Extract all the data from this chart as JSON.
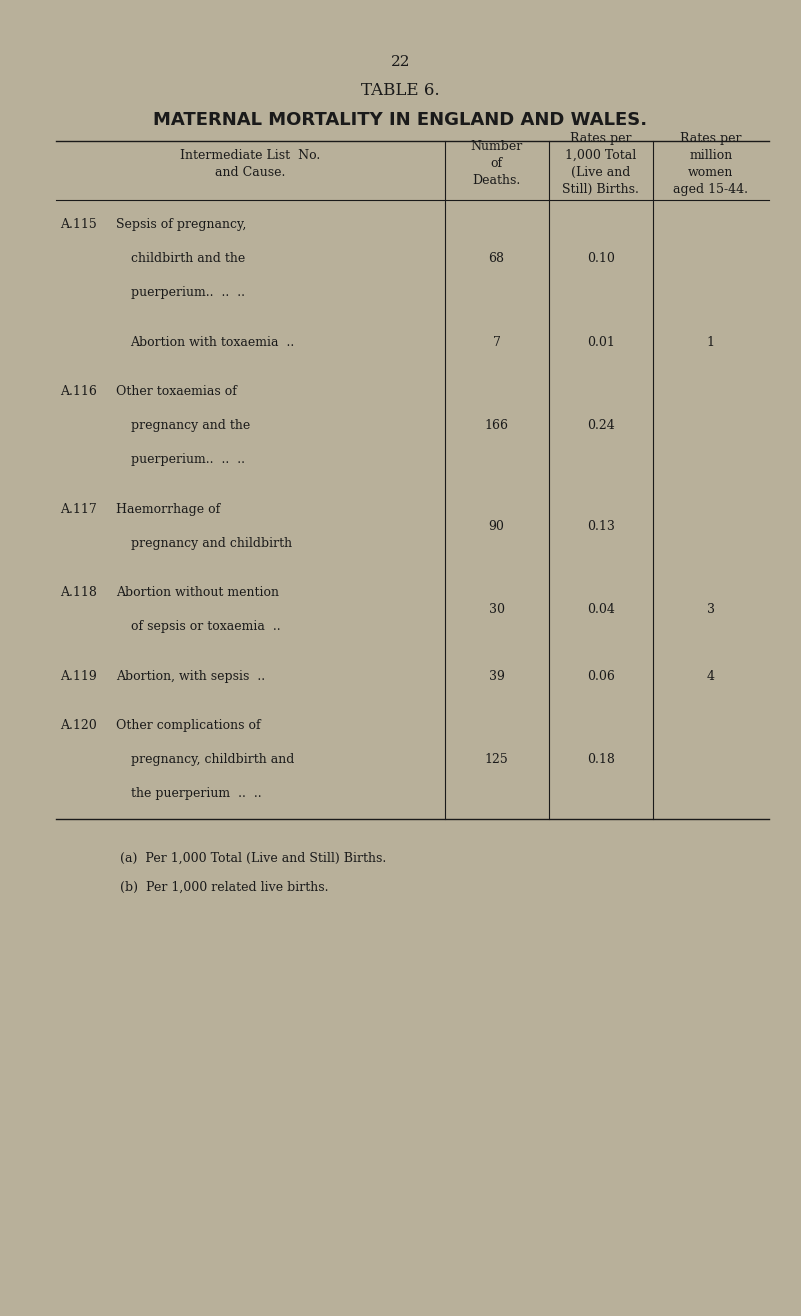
{
  "page_number": "22",
  "table_title": "TABLE 6.",
  "table_subtitle": "MATERNAL MORTALITY IN ENGLAND AND WALES.",
  "bg_color": "#b8b09a",
  "text_color": "#1a1a1a",
  "col_headers": [
    "Intermediate List  No.\nand Cause.",
    "Number\nof\nDeaths.",
    "Rates per\n1,000 Total\n(Live and\nStill) Births.",
    "Rates per\nmillion\nwomen\naged 15-44."
  ],
  "rows": [
    {
      "id": "A.115",
      "cause_lines": [
        "Sepsis of pregnancy,",
        "childbirth and the",
        "puerperium..  ..  .."
      ],
      "number": "68",
      "rate_births": "0.10",
      "rate_women": ""
    },
    {
      "id": "",
      "cause_lines": [
        "Abortion with toxaemia  .."
      ],
      "number": "7",
      "rate_births": "0.01",
      "rate_women": "1"
    },
    {
      "id": "A.116",
      "cause_lines": [
        "Other toxaemias of",
        "pregnancy and the",
        "puerperium..  ..  .."
      ],
      "number": "166",
      "rate_births": "0.24",
      "rate_women": ""
    },
    {
      "id": "A.117",
      "cause_lines": [
        "Haemorrhage of",
        "pregnancy and childbirth"
      ],
      "number": "90",
      "rate_births": "0.13",
      "rate_women": ""
    },
    {
      "id": "A.118",
      "cause_lines": [
        "Abortion without mention",
        "of sepsis or toxaemia  .."
      ],
      "number": "30",
      "rate_births": "0.04",
      "rate_women": "3"
    },
    {
      "id": "A.119",
      "cause_lines": [
        "Abortion, with sepsis  .."
      ],
      "number": "39",
      "rate_births": "0.06",
      "rate_women": "4"
    },
    {
      "id": "A.120",
      "cause_lines": [
        "Other complications of",
        "pregnancy, childbirth and",
        "the puerperium  ..  .."
      ],
      "number": "125",
      "rate_births": "0.18",
      "rate_women": ""
    }
  ],
  "footnotes": [
    "(a)  Per 1,000 Total (Live and Still) Births.",
    "(b)  Per 1,000 related live births."
  ]
}
